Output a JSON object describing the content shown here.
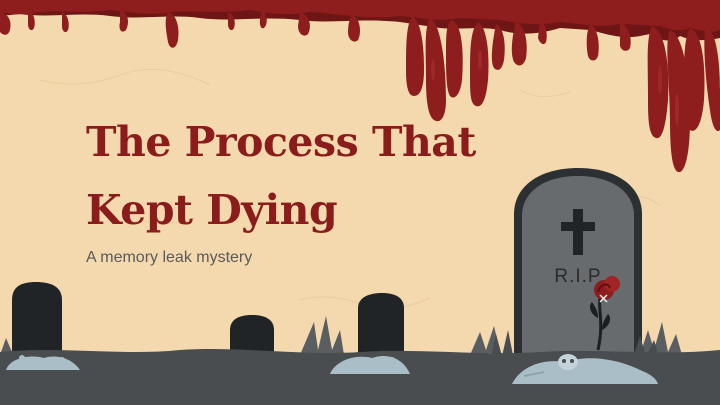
{
  "slide": {
    "title_line1": "The Process That",
    "title_line2": "Kept Dying",
    "subtitle": "A memory leak mystery",
    "tombstone_text": "R.I.P"
  },
  "colors": {
    "background": "#f4d9ae",
    "blood": "#8e1d1d",
    "blood_dark": "#6e1515",
    "title": "#8a1c1c",
    "subtitle": "#5a5a5a",
    "ground": "#4a4d50",
    "tombstone_large": "#676b6e",
    "tombstone_small": "#202426",
    "bones": "#a9bec6"
  },
  "icons": [
    "cross-icon",
    "rose-icon",
    "skull-icon"
  ]
}
